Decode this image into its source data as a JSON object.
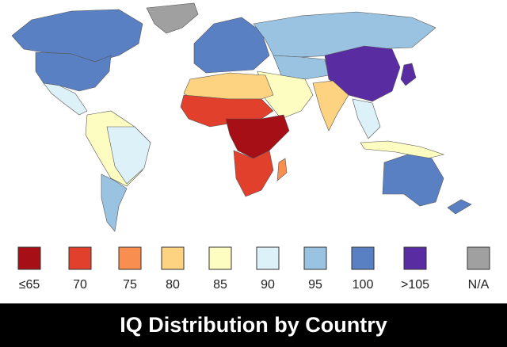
{
  "title": "IQ Distribution by Country",
  "legend": [
    {
      "label": "≤65",
      "color": "#a50f15"
    },
    {
      "label": "70",
      "color": "#e1402d"
    },
    {
      "label": "75",
      "color": "#f88e4f"
    },
    {
      "label": "80",
      "color": "#fdd382"
    },
    {
      "label": "85",
      "color": "#fdfdc2"
    },
    {
      "label": "90",
      "color": "#ddf1f8"
    },
    {
      "label": "95",
      "color": "#9ac3e2"
    },
    {
      "label": "100",
      "color": "#5a80c4"
    },
    {
      ">105": null,
      "label": ">105",
      "color": "#5a2ca2"
    },
    {
      "label": "N/A",
      "color": "#a0a0a0"
    }
  ]
}
